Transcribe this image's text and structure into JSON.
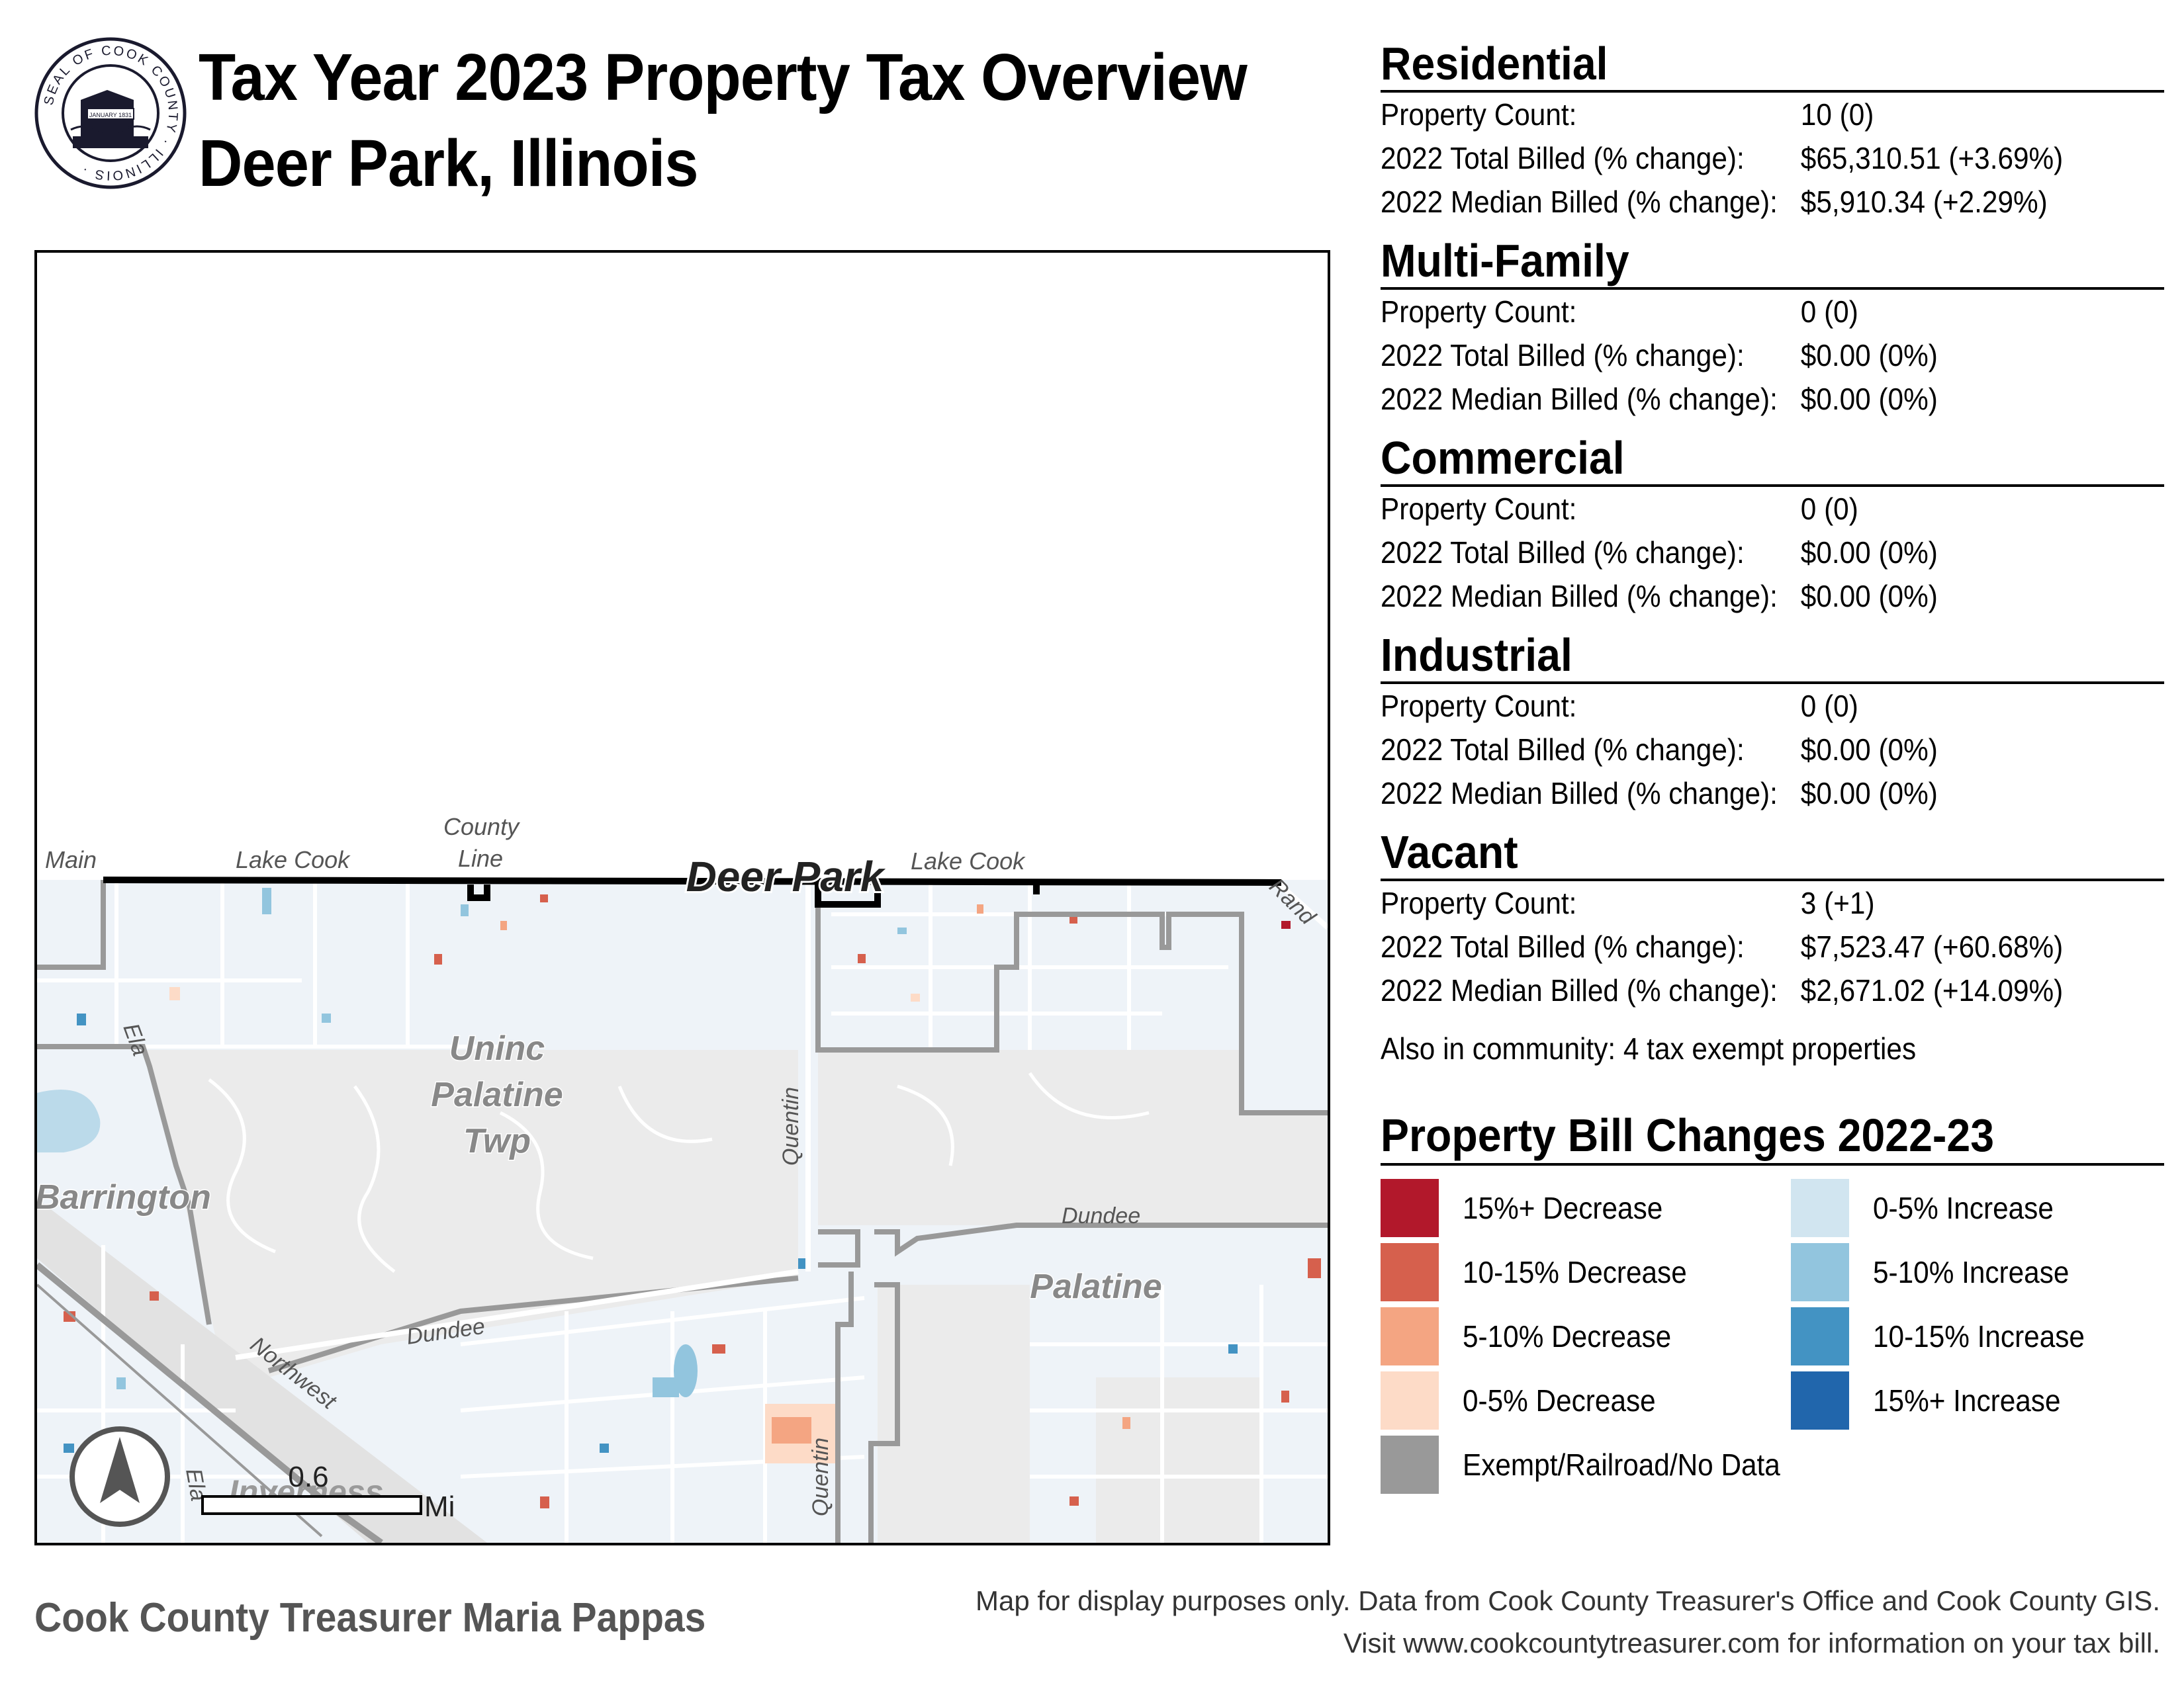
{
  "seal": {
    "ring_text": "SEAL OF COOK COUNTY · ILLINOIS ·",
    "banner_text": "JANUARY 1831"
  },
  "title": {
    "line1": "Tax Year 2023 Property Tax Overview",
    "line2": "Deer Park, Illinois"
  },
  "map": {
    "labels": {
      "main": "Main",
      "lake_cook_west": "Lake Cook",
      "county_line_1": "County",
      "county_line_2": "Line",
      "deer_park": "Deer Park",
      "lake_cook_east": "Lake Cook",
      "rand": "Rand",
      "ela_north": "Ela",
      "uninc_1": "Uninc",
      "uninc_2": "Palatine",
      "uninc_3": "Twp",
      "quentin_north": "Quentin",
      "barrington": "Barrington",
      "dundee_east": "Dundee",
      "palatine": "Palatine",
      "dundee_west": "Dundee",
      "northwest": "Northwest",
      "quentin_south": "Quentin",
      "ela_south": "Ela",
      "inverness": "Inverness"
    },
    "scale": {
      "value": "0.6",
      "unit": "Mi"
    },
    "colors": {
      "land": "#ebebeb",
      "parcel_bg": "#eef3f8",
      "boundary": "#999999",
      "deer_park_boundary": "#000000"
    }
  },
  "categories": [
    {
      "name": "Residential",
      "rows": [
        {
          "label": "Property Count:",
          "value": "10 (0)"
        },
        {
          "label": "2022 Total Billed (% change):",
          "value": "$65,310.51 (+3.69%)"
        },
        {
          "label": "2022 Median Billed (% change):",
          "value": "$5,910.34 (+2.29%)"
        }
      ]
    },
    {
      "name": "Multi-Family",
      "rows": [
        {
          "label": "Property Count:",
          "value": "0 (0)"
        },
        {
          "label": "2022 Total Billed (% change):",
          "value": "$0.00 (0%)"
        },
        {
          "label": "2022 Median Billed (% change):",
          "value": "$0.00 (0%)"
        }
      ]
    },
    {
      "name": "Commercial",
      "rows": [
        {
          "label": "Property Count:",
          "value": "0 (0)"
        },
        {
          "label": "2022 Total Billed (% change):",
          "value": "$0.00 (0%)"
        },
        {
          "label": "2022 Median Billed (% change):",
          "value": "$0.00 (0%)"
        }
      ]
    },
    {
      "name": "Industrial",
      "rows": [
        {
          "label": "Property Count:",
          "value": "0 (0)"
        },
        {
          "label": "2022 Total Billed (% change):",
          "value": "$0.00 (0%)"
        },
        {
          "label": "2022 Median Billed (% change):",
          "value": "$0.00 (0%)"
        }
      ]
    },
    {
      "name": "Vacant",
      "rows": [
        {
          "label": "Property Count:",
          "value": "3 (+1)"
        },
        {
          "label": "2022 Total Billed (% change):",
          "value": "$7,523.47 (+60.68%)"
        },
        {
          "label": "2022 Median Billed (% change):",
          "value": "$2,671.02 (+14.09%)"
        }
      ]
    }
  ],
  "community_note": "Also in community: 4 tax exempt properties",
  "legend": {
    "title": "Property Bill Changes 2022-23",
    "items": [
      {
        "label": "15%+ Decrease",
        "color": "#b2182b"
      },
      {
        "label": "10-15% Decrease",
        "color": "#d6604d"
      },
      {
        "label": "5-10% Decrease",
        "color": "#f4a582"
      },
      {
        "label": "0-5% Decrease",
        "color": "#fddbc7"
      },
      {
        "label": "Exempt/Railroad/No Data",
        "color": "#999999"
      },
      {
        "label": "0-5% Increase",
        "color": "#d1e5f0"
      },
      {
        "label": "5-10% Increase",
        "color": "#92c5de"
      },
      {
        "label": "10-15% Increase",
        "color": "#4393c3"
      },
      {
        "label": "15%+ Increase",
        "color": "#2166ac"
      }
    ]
  },
  "footer": {
    "left": "Cook County Treasurer Maria Pappas",
    "right_line1": "Map for display purposes only. Data from Cook County Treasurer's Office and Cook County GIS.",
    "right_line2": "Visit www.cookcountytreasurer.com for information on your tax bill."
  }
}
